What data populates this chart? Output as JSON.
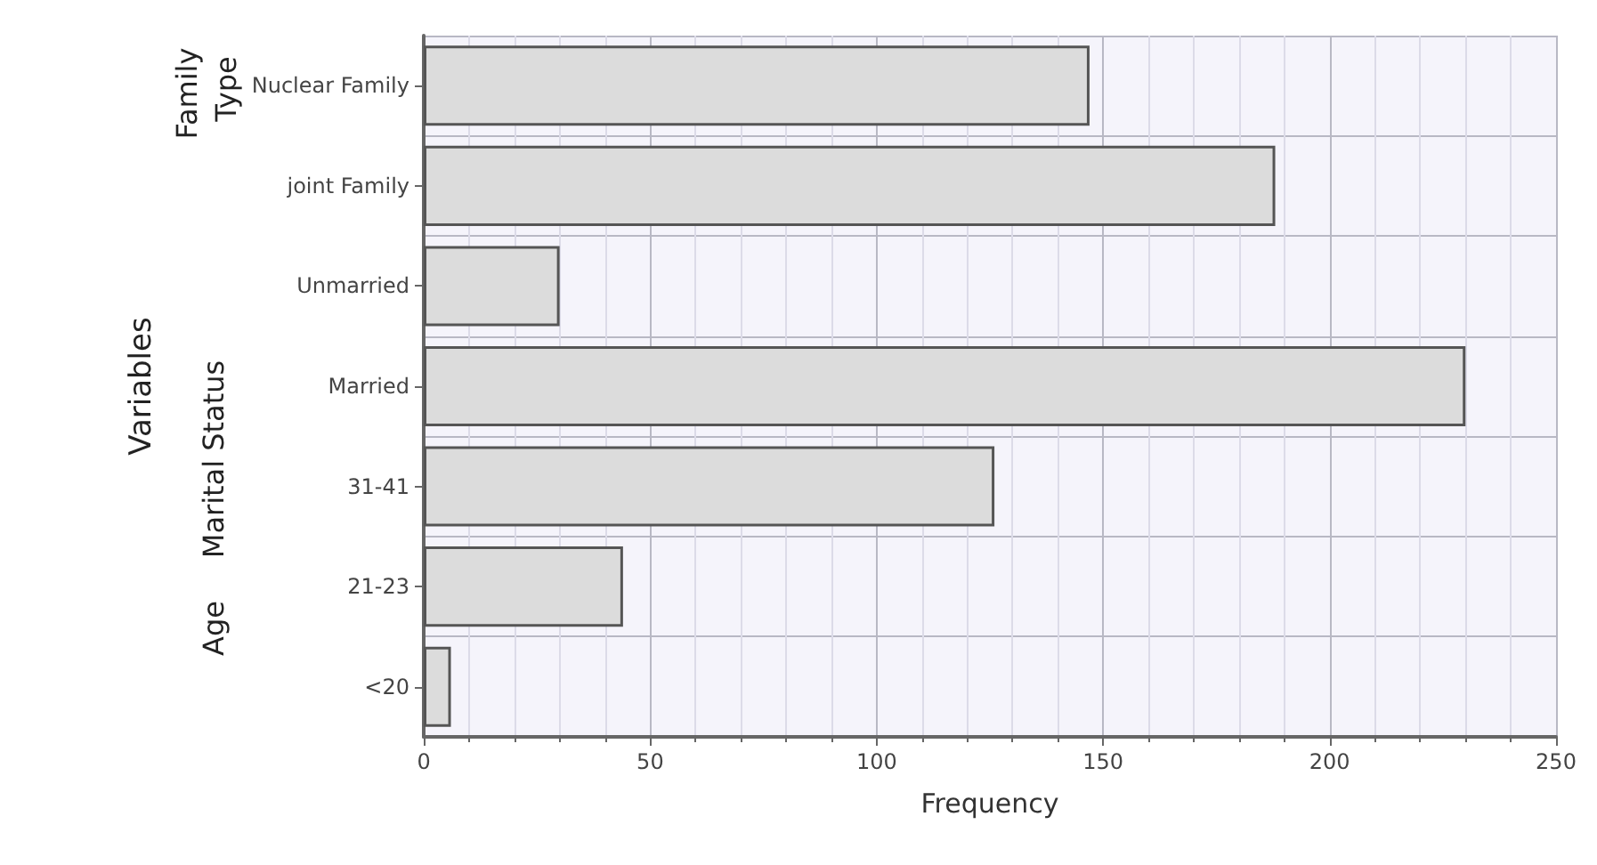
{
  "chart_data": {
    "type": "bar",
    "orientation": "horizontal",
    "xlabel": "Frequency",
    "ylabel": "Variables",
    "categories": [
      "Nuclear Family",
      "joint Family",
      "Unmarried",
      "Married",
      "31-41",
      "21-23",
      "<20"
    ],
    "values": [
      147,
      188,
      30,
      230,
      126,
      44,
      6
    ],
    "color": "#dcdcdc",
    "xlim": [
      0,
      250
    ],
    "xticks": [
      0,
      50,
      100,
      150,
      200,
      250
    ],
    "grid": true,
    "annotations": [
      "Family Type",
      "Marital Status",
      "Age"
    ]
  }
}
